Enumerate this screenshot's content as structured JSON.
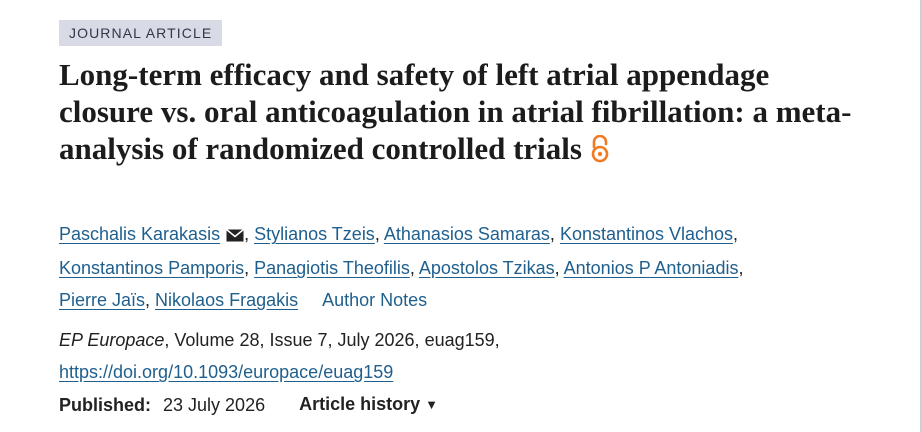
{
  "article_type": "JOURNAL ARTICLE",
  "title": "Long-term efficacy and safety of left atrial appendage closure vs. oral anticoagulation in atrial fibrillation: a meta-analysis of randomized controlled trials",
  "open_access_icon": "open-access-lock-icon",
  "colors": {
    "link": "#1f5f8e",
    "open_access": "#f07b21",
    "badge_bg": "#d8dbe6"
  },
  "authors": [
    "Paschalis Karakasis",
    "Stylianos Tzeis",
    "Athanasios Samaras",
    "Konstantinos Vlachos",
    "Konstantinos Pamporis",
    "Panagiotis Theofilis",
    "Apostolos Tzikas",
    "Antonios P Antoniadis",
    "Pierre Jaïs",
    "Nikolaos Fragakis"
  ],
  "corresponding_icon": "envelope-icon",
  "author_notes_label": "Author Notes",
  "citation": {
    "journal": "EP Europace",
    "details": ", Volume 28, Issue 7, July 2026, euag159,"
  },
  "doi": "https://doi.org/10.1093/europace/euag159",
  "published_label": "Published:",
  "published_date": "23 July 2026",
  "article_history_label": "Article history",
  "article_history_caret": "▼"
}
